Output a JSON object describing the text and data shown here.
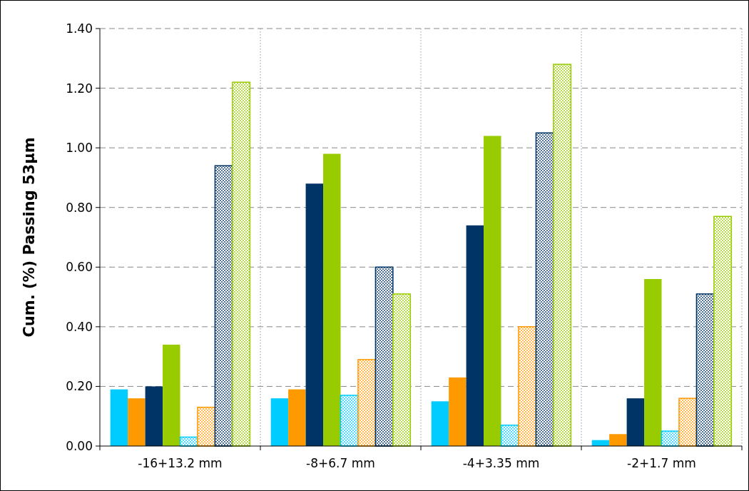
{
  "chart_data": {
    "type": "bar",
    "ylabel": "Cum. (%) Passing 53µm",
    "categories": [
      "-16+13.2 mm",
      "-8+6.7 mm",
      "-4+3.35 mm",
      "-2+1.7 mm"
    ],
    "series": [
      {
        "color": "#00ccff",
        "values": [
          0.19,
          0.16,
          0.15,
          0.02
        ]
      },
      {
        "color": "#ff9900",
        "values": [
          0.16,
          0.19,
          0.23,
          0.04
        ]
      },
      {
        "color": "#003366",
        "values": [
          0.2,
          0.88,
          0.74,
          0.16
        ]
      },
      {
        "color": "#99cc00",
        "values": [
          0.34,
          0.98,
          1.04,
          0.56
        ]
      },
      {
        "color": "#00ccff",
        "values": [
          0.03,
          0.17,
          0.07,
          0.05
        ]
      },
      {
        "color": "#ff9900",
        "values": [
          0.13,
          0.29,
          0.4,
          0.16
        ]
      },
      {
        "color": "#003366",
        "values": [
          0.94,
          0.6,
          1.05,
          0.51
        ]
      },
      {
        "color": "#99cc00",
        "values": [
          1.22,
          0.51,
          1.28,
          0.77
        ]
      }
    ],
    "ylim": [
      0,
      1.4
    ],
    "yticks": [
      {
        "value": 0,
        "label": "0.00"
      },
      {
        "value": 0.2,
        "label": "0.20"
      },
      {
        "value": 0.4,
        "label": "0.40"
      },
      {
        "value": 0.6,
        "label": "0.60"
      },
      {
        "value": 0.8,
        "label": "0.80"
      },
      {
        "value": 1,
        "label": "1.00"
      },
      {
        "value": 1.2,
        "label": "1.20"
      },
      {
        "value": 1.4,
        "label": "1.40"
      }
    ],
    "grid": true
  }
}
